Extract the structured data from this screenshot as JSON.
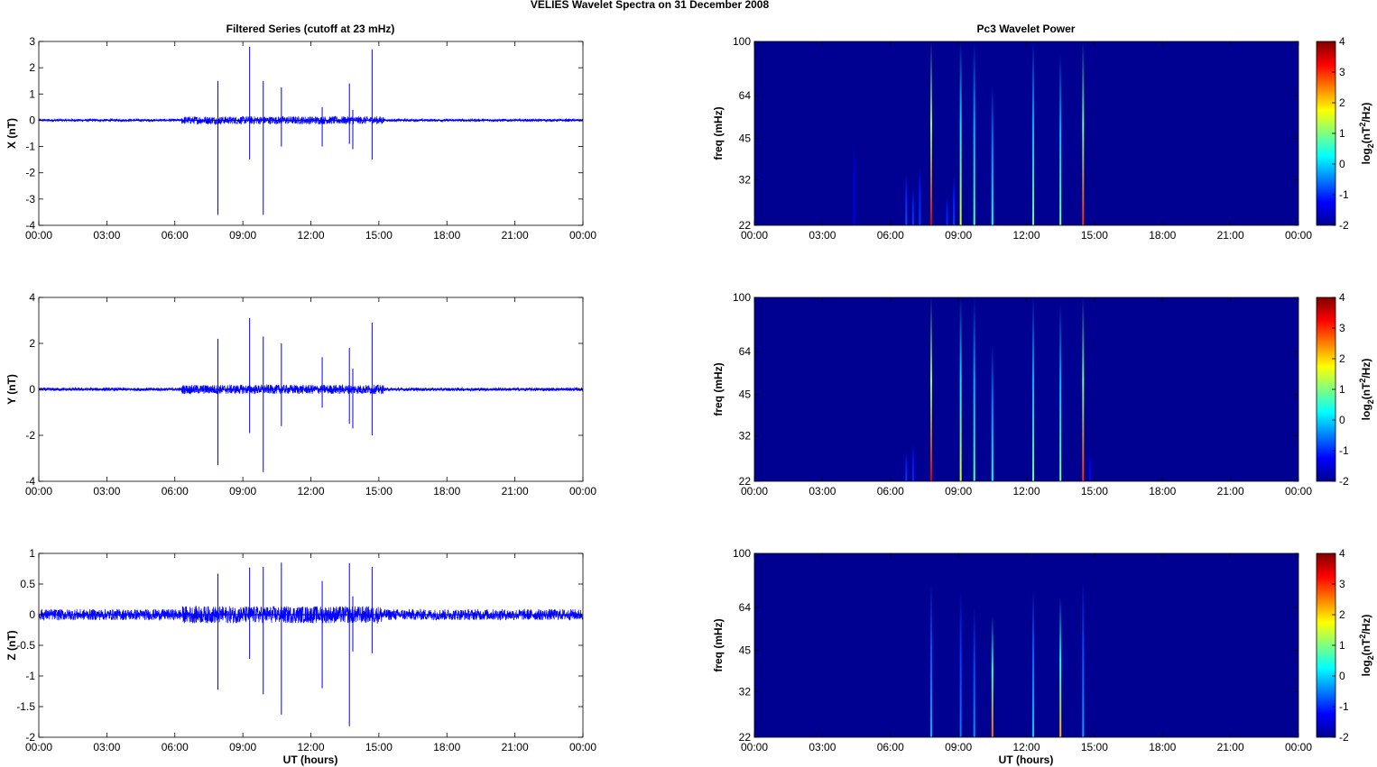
{
  "figure": {
    "title": "VELIES Wavelet Spectra on 31 December  2008",
    "left_title": "Filtered Series (cutoff at 23 mHz)",
    "right_title": "Pc3 Wavelet Power",
    "xlabel": "UT (hours)",
    "colors": {
      "trace": "#0000ff",
      "background": "#00008f",
      "axes": "#000000"
    }
  },
  "chart_data": [
    {
      "type": "line",
      "name": "x-series",
      "ylabel": "X (nT)",
      "xlim": [
        0,
        24
      ],
      "ylim": [
        -4,
        3
      ],
      "yticks": [
        "-4",
        "-3",
        "-2",
        "-1",
        "0",
        "1",
        "2",
        "3"
      ],
      "yticks_values": [
        -4,
        -3,
        -2,
        -1,
        0,
        1,
        2,
        3
      ],
      "xticks": [
        "00:00",
        "03:00",
        "06:00",
        "09:00",
        "12:00",
        "15:00",
        "18:00",
        "21:00",
        "00:00"
      ],
      "noise_amplitude": 0.05,
      "active_window": [
        6.3,
        15.2
      ],
      "active_amplitude": 0.15,
      "spikes": [
        {
          "t": 7.9,
          "max": 1.5,
          "min": -3.6
        },
        {
          "t": 9.3,
          "max": 2.8,
          "min": -1.5
        },
        {
          "t": 9.9,
          "max": 1.5,
          "min": -3.6
        },
        {
          "t": 10.7,
          "max": 1.25,
          "min": -1.0
        },
        {
          "t": 12.5,
          "max": 0.5,
          "min": -1.0
        },
        {
          "t": 13.7,
          "max": 1.4,
          "min": -0.9
        },
        {
          "t": 13.85,
          "max": 0.4,
          "min": -1.1
        },
        {
          "t": 14.7,
          "max": 2.7,
          "min": -1.5
        }
      ]
    },
    {
      "type": "line",
      "name": "y-series",
      "ylabel": "Y (nT)",
      "xlim": [
        0,
        24
      ],
      "ylim": [
        -4,
        4
      ],
      "yticks": [
        "-4",
        "-2",
        "0",
        "2",
        "4"
      ],
      "yticks_values": [
        -4,
        -2,
        0,
        2,
        4
      ],
      "xticks": [
        "00:00",
        "03:00",
        "06:00",
        "09:00",
        "12:00",
        "15:00",
        "18:00",
        "21:00",
        "00:00"
      ],
      "noise_amplitude": 0.07,
      "active_window": [
        6.3,
        15.2
      ],
      "active_amplitude": 0.2,
      "spikes": [
        {
          "t": 7.9,
          "max": 2.2,
          "min": -3.3
        },
        {
          "t": 9.3,
          "max": 3.1,
          "min": -1.9
        },
        {
          "t": 9.9,
          "max": 2.3,
          "min": -3.6
        },
        {
          "t": 10.7,
          "max": 2.0,
          "min": -1.6
        },
        {
          "t": 12.5,
          "max": 1.4,
          "min": -0.8
        },
        {
          "t": 13.7,
          "max": 1.8,
          "min": -1.5
        },
        {
          "t": 13.85,
          "max": 0.9,
          "min": -1.7
        },
        {
          "t": 14.7,
          "max": 2.9,
          "min": -2.0
        }
      ]
    },
    {
      "type": "line",
      "name": "z-series",
      "ylabel": "Z (nT)",
      "xlim": [
        0,
        24
      ],
      "ylim": [
        -2,
        1
      ],
      "yticks": [
        "-2",
        "-1.5",
        "-1",
        "-0.5",
        "0",
        "0.5",
        "1"
      ],
      "yticks_values": [
        -2,
        -1.5,
        -1,
        -0.5,
        0,
        0.5,
        1
      ],
      "xticks": [
        "00:00",
        "03:00",
        "06:00",
        "09:00",
        "12:00",
        "15:00",
        "18:00",
        "21:00",
        "00:00"
      ],
      "noise_amplitude": 0.09,
      "active_window": [
        6.3,
        15.2
      ],
      "active_amplitude": 0.14,
      "spikes": [
        {
          "t": 7.9,
          "max": 0.67,
          "min": -1.22
        },
        {
          "t": 9.3,
          "max": 0.77,
          "min": -0.72
        },
        {
          "t": 9.9,
          "max": 0.78,
          "min": -1.3
        },
        {
          "t": 10.7,
          "max": 0.85,
          "min": -1.63
        },
        {
          "t": 12.5,
          "max": 0.55,
          "min": -1.2
        },
        {
          "t": 13.7,
          "max": 0.84,
          "min": -1.82
        },
        {
          "t": 13.85,
          "max": 0.3,
          "min": -0.6
        },
        {
          "t": 14.7,
          "max": 0.78,
          "min": -0.63
        }
      ]
    },
    {
      "type": "heatmap",
      "name": "x-power",
      "ylabel": "freq (mHz)",
      "xlim": [
        0,
        24
      ],
      "ylim": [
        22,
        100
      ],
      "yscale": "log",
      "yticks": [
        "22",
        "32",
        "45",
        "64",
        "100"
      ],
      "yticks_values": [
        22,
        32,
        45,
        64,
        100
      ],
      "xticks": [
        "00:00",
        "03:00",
        "06:00",
        "09:00",
        "12:00",
        "15:00",
        "18:00",
        "21:00",
        "00:00"
      ],
      "clim": [
        -2,
        4
      ],
      "background_value": -1.9,
      "colorbar_ticks": [
        "-2",
        "-1",
        "0",
        "1",
        "2",
        "3",
        "4"
      ],
      "colorbar_label_base": "log",
      "colorbar_label_sub": "2",
      "colorbar_label_unit1": "(nT",
      "colorbar_label_sup": "2",
      "colorbar_label_unit2": "/Hz)",
      "streaks": [
        {
          "t": 4.4,
          "fmax": 44,
          "peak": -1.4
        },
        {
          "t": 6.7,
          "fmax": 34,
          "peak": -0.8
        },
        {
          "t": 7.0,
          "fmax": 30,
          "peak": -0.9
        },
        {
          "t": 7.3,
          "fmax": 36,
          "peak": -0.9
        },
        {
          "t": 7.8,
          "fmax": 100,
          "peak": 3.5
        },
        {
          "t": 8.5,
          "fmax": 28,
          "peak": -1.0
        },
        {
          "t": 8.8,
          "fmax": 33,
          "peak": -0.9
        },
        {
          "t": 9.1,
          "fmax": 100,
          "peak": 1.5
        },
        {
          "t": 9.7,
          "fmax": 100,
          "peak": 0.8
        },
        {
          "t": 10.5,
          "fmax": 70,
          "peak": 0.4
        },
        {
          "t": 12.3,
          "fmax": 100,
          "peak": 0.9
        },
        {
          "t": 13.5,
          "fmax": 90,
          "peak": 1.0
        },
        {
          "t": 14.5,
          "fmax": 100,
          "peak": 3.0
        }
      ]
    },
    {
      "type": "heatmap",
      "name": "y-power",
      "ylabel": "freq (mHz)",
      "xlim": [
        0,
        24
      ],
      "ylim": [
        22,
        100
      ],
      "yscale": "log",
      "yticks": [
        "22",
        "32",
        "45",
        "64",
        "100"
      ],
      "yticks_values": [
        22,
        32,
        45,
        64,
        100
      ],
      "xticks": [
        "00:00",
        "03:00",
        "06:00",
        "09:00",
        "12:00",
        "15:00",
        "18:00",
        "21:00",
        "00:00"
      ],
      "clim": [
        -2,
        4
      ],
      "background_value": -1.9,
      "colorbar_ticks": [
        "-2",
        "-1",
        "0",
        "1",
        "2",
        "3",
        "4"
      ],
      "colorbar_label_base": "log",
      "colorbar_label_sub": "2",
      "colorbar_label_unit1": "(nT",
      "colorbar_label_sup": "2",
      "colorbar_label_unit2": "/Hz)",
      "streaks": [
        {
          "t": 6.7,
          "fmax": 28,
          "peak": -0.9
        },
        {
          "t": 7.0,
          "fmax": 30,
          "peak": -1.0
        },
        {
          "t": 7.8,
          "fmax": 100,
          "peak": 3.5
        },
        {
          "t": 9.1,
          "fmax": 100,
          "peak": 1.5
        },
        {
          "t": 9.7,
          "fmax": 100,
          "peak": 0.8
        },
        {
          "t": 10.5,
          "fmax": 68,
          "peak": 0.4
        },
        {
          "t": 12.3,
          "fmax": 100,
          "peak": 0.9
        },
        {
          "t": 13.5,
          "fmax": 95,
          "peak": 1.0
        },
        {
          "t": 14.5,
          "fmax": 100,
          "peak": 3.0
        },
        {
          "t": 14.8,
          "fmax": 28,
          "peak": -1.2
        }
      ]
    },
    {
      "type": "heatmap",
      "name": "z-power",
      "ylabel": "freq (mHz)",
      "xlim": [
        0,
        24
      ],
      "ylim": [
        22,
        100
      ],
      "yscale": "log",
      "yticks": [
        "22",
        "32",
        "45",
        "64",
        "100"
      ],
      "yticks_values": [
        22,
        32,
        45,
        64,
        100
      ],
      "xticks": [
        "00:00",
        "03:00",
        "06:00",
        "09:00",
        "12:00",
        "15:00",
        "18:00",
        "21:00",
        "00:00"
      ],
      "clim": [
        -2,
        4
      ],
      "background_value": -1.9,
      "colorbar_ticks": [
        "-2",
        "-1",
        "0",
        "1",
        "2",
        "3",
        "4"
      ],
      "colorbar_label_base": "log",
      "colorbar_label_sub": "2",
      "colorbar_label_unit1": "(nT",
      "colorbar_label_sup": "2",
      "colorbar_label_unit2": "/Hz)",
      "streaks": [
        {
          "t": 7.8,
          "fmax": 80,
          "peak": -0.2
        },
        {
          "t": 9.1,
          "fmax": 75,
          "peak": -0.5
        },
        {
          "t": 9.7,
          "fmax": 65,
          "peak": -0.4
        },
        {
          "t": 10.5,
          "fmax": 60,
          "peak": 2.6
        },
        {
          "t": 12.3,
          "fmax": 75,
          "peak": 0.0
        },
        {
          "t": 13.5,
          "fmax": 70,
          "peak": 2.2
        },
        {
          "t": 14.5,
          "fmax": 80,
          "peak": -0.3
        }
      ]
    }
  ]
}
